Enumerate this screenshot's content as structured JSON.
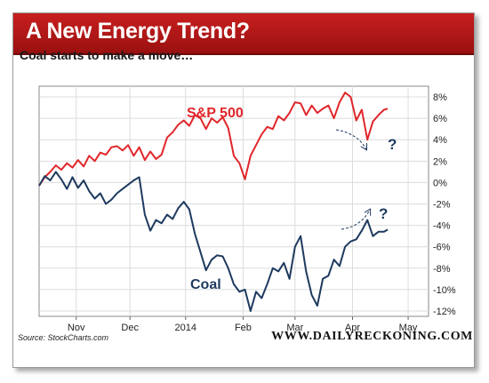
{
  "title": "A New Energy Trend?",
  "subtitle": "Coal starts to make a move…",
  "source": "Source: StockCharts.com",
  "brand": "WWW.DAILYRECKONING.COM",
  "colors": {
    "sp500": "#e0262b",
    "coal": "#1e3a5f",
    "banner": "#b51616"
  },
  "chart_data": {
    "type": "line",
    "title": "A New Energy Trend?",
    "subtitle": "Coal starts to make a move…",
    "x_tick_labels": [
      "Nov",
      "Dec",
      "2014",
      "Feb",
      "Mar",
      "Apr",
      "May"
    ],
    "y_tick_labels": [
      "8%",
      "6%",
      "4%",
      "2%",
      "0%",
      "-2%",
      "-4%",
      "-6%",
      "-8%",
      "-10%",
      "-12%"
    ],
    "y_ticks": [
      8,
      6,
      4,
      2,
      0,
      -2,
      -4,
      -6,
      -8,
      -10,
      -12
    ],
    "ylim": [
      -12.5,
      9
    ],
    "x_ticks": [
      20,
      49,
      79,
      110,
      138,
      169,
      199
    ],
    "xlim": [
      0,
      210
    ],
    "grid": true,
    "annotations": [
      {
        "text": "S&P 500"
      },
      {
        "text": "Coal"
      },
      {
        "text": "?"
      },
      {
        "text": "?"
      }
    ],
    "series": [
      {
        "name": "S&P 500",
        "x": [
          0,
          3,
          6,
          9,
          12,
          15,
          18,
          21,
          24,
          27,
          30,
          33,
          36,
          39,
          42,
          45,
          48,
          51,
          54,
          57,
          60,
          63,
          66,
          69,
          72,
          75,
          78,
          81,
          84,
          87,
          90,
          93,
          96,
          99,
          102,
          105,
          108,
          111,
          114,
          117,
          120,
          123,
          126,
          129,
          132,
          135,
          138,
          141,
          144,
          147,
          150,
          153,
          156,
          159,
          162,
          165,
          168,
          171,
          174,
          177,
          180,
          183,
          186,
          188
        ],
        "values": [
          -0.3,
          0.5,
          1.0,
          1.6,
          1.2,
          1.8,
          1.4,
          2.1,
          1.5,
          2.5,
          2.0,
          2.8,
          2.6,
          3.3,
          3.4,
          3.0,
          3.5,
          2.5,
          3.3,
          2.1,
          2.9,
          2.2,
          2.6,
          4.2,
          4.7,
          5.4,
          5.8,
          5.3,
          6.3,
          6.0,
          5.0,
          6.0,
          5.6,
          6.1,
          5.1,
          2.5,
          1.8,
          0.3,
          2.5,
          3.5,
          4.5,
          5.2,
          5.0,
          6.2,
          5.8,
          6.5,
          7.5,
          7.4,
          6.3,
          7.2,
          6.5,
          6.9,
          7.2,
          6.0,
          7.5,
          8.4,
          8.0,
          5.8,
          6.8,
          4.0,
          5.7,
          6.3,
          6.8,
          6.9
        ]
      },
      {
        "name": "Coal",
        "x": [
          0,
          3,
          6,
          9,
          12,
          15,
          18,
          21,
          24,
          27,
          30,
          33,
          36,
          39,
          42,
          45,
          48,
          51,
          54,
          57,
          60,
          63,
          66,
          69,
          72,
          75,
          78,
          81,
          84,
          87,
          90,
          93,
          96,
          99,
          102,
          105,
          108,
          111,
          114,
          117,
          120,
          123,
          126,
          129,
          132,
          135,
          138,
          141,
          144,
          147,
          150,
          153,
          156,
          159,
          162,
          165,
          168,
          171,
          174,
          177,
          180,
          183,
          186,
          188
        ],
        "values": [
          -0.3,
          0.6,
          0.2,
          1.0,
          0.3,
          -0.6,
          0.5,
          -0.5,
          0.2,
          -0.8,
          -1.5,
          -1.0,
          -2.0,
          -1.6,
          -1.0,
          -0.6,
          -0.2,
          0.2,
          0.5,
          -3.0,
          -4.5,
          -3.5,
          -3.8,
          -3.0,
          -3.4,
          -2.4,
          -1.8,
          -2.5,
          -4.8,
          -6.5,
          -8.2,
          -7.2,
          -6.8,
          -6.9,
          -8.0,
          -9.5,
          -10.2,
          -10.0,
          -12.0,
          -10.2,
          -10.8,
          -9.5,
          -8.0,
          -8.3,
          -7.5,
          -9.0,
          -6.0,
          -5.0,
          -8.3,
          -10.5,
          -11.5,
          -9.0,
          -8.7,
          -7.2,
          -7.8,
          -6.0,
          -5.5,
          -5.3,
          -4.5,
          -3.5,
          -5.0,
          -4.6,
          -4.6,
          -4.4
        ]
      }
    ]
  }
}
